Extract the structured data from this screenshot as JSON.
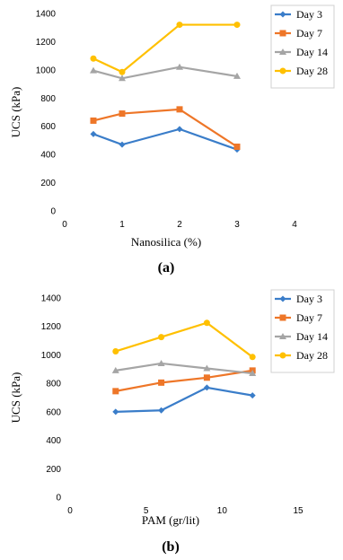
{
  "colors": {
    "Day 3": "#3a7dc9",
    "Day 7": "#ee7628",
    "Day 14": "#a5a5a5",
    "Day 28": "#ffc000"
  },
  "chart_data": [
    {
      "type": "line",
      "panel_label": "(a)",
      "xlabel": "Nanosilica (%)",
      "ylabel": "UCS (kPa)",
      "xlim": [
        0,
        4
      ],
      "ylim": [
        0,
        1400
      ],
      "x_ticks": [
        0,
        1,
        2,
        3,
        4
      ],
      "y_ticks": [
        0,
        200,
        400,
        600,
        800,
        1000,
        1200,
        1400
      ],
      "legend_position": "right",
      "series": [
        {
          "name": "Day 3",
          "marker": "diamond",
          "x": [
            0.5,
            1,
            2,
            3
          ],
          "y": [
            545,
            470,
            580,
            435
          ]
        },
        {
          "name": "Day 7",
          "marker": "square",
          "x": [
            0.5,
            1,
            2,
            3
          ],
          "y": [
            640,
            690,
            720,
            455
          ]
        },
        {
          "name": "Day 14",
          "marker": "triangle",
          "x": [
            0.5,
            1,
            2,
            3
          ],
          "y": [
            995,
            940,
            1020,
            955
          ]
        },
        {
          "name": "Day 28",
          "marker": "circle",
          "x": [
            0.5,
            1,
            2,
            3
          ],
          "y": [
            1080,
            985,
            1320,
            1320
          ]
        }
      ]
    },
    {
      "type": "line",
      "panel_label": "(b)",
      "xlabel": "PAM (gr/lit)",
      "ylabel": "UCS (kPa)",
      "xlim": [
        0,
        15
      ],
      "ylim": [
        0,
        1400
      ],
      "x_ticks": [
        0,
        5,
        10,
        15
      ],
      "y_ticks": [
        0,
        200,
        400,
        600,
        800,
        1000,
        1200,
        1400
      ],
      "legend_position": "right",
      "series": [
        {
          "name": "Day 3",
          "marker": "diamond",
          "x": [
            3,
            6,
            9,
            12
          ],
          "y": [
            600,
            610,
            770,
            715
          ]
        },
        {
          "name": "Day 7",
          "marker": "square",
          "x": [
            3,
            6,
            9,
            12
          ],
          "y": [
            745,
            805,
            840,
            890
          ]
        },
        {
          "name": "Day 14",
          "marker": "triangle",
          "x": [
            3,
            6,
            9,
            12
          ],
          "y": [
            890,
            940,
            905,
            870
          ]
        },
        {
          "name": "Day 28",
          "marker": "circle",
          "x": [
            3,
            6,
            9,
            12
          ],
          "y": [
            1025,
            1125,
            1225,
            985
          ]
        }
      ]
    }
  ]
}
